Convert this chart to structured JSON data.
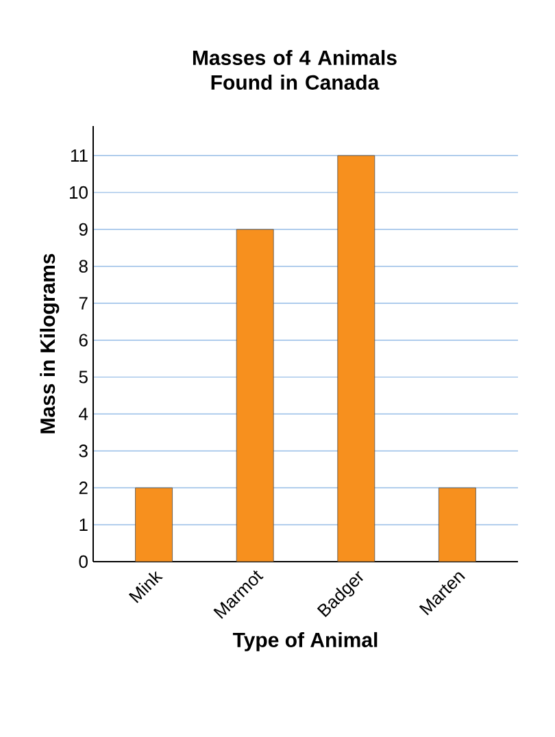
{
  "chart_data": {
    "type": "bar",
    "title": "Masses of 4 Animals Found in Canada",
    "xlabel": "Type of Animal",
    "ylabel": "Mass in Kilograms",
    "categories": [
      "Mink",
      "Marmot",
      "Badger",
      "Marten"
    ],
    "values": [
      2,
      9,
      11,
      2
    ],
    "color": "#f7901e",
    "ylim": [
      0,
      11.8
    ],
    "yticks": [
      0,
      1,
      2,
      3,
      4,
      5,
      6,
      7,
      8,
      9,
      10,
      11
    ],
    "grid": "y"
  }
}
